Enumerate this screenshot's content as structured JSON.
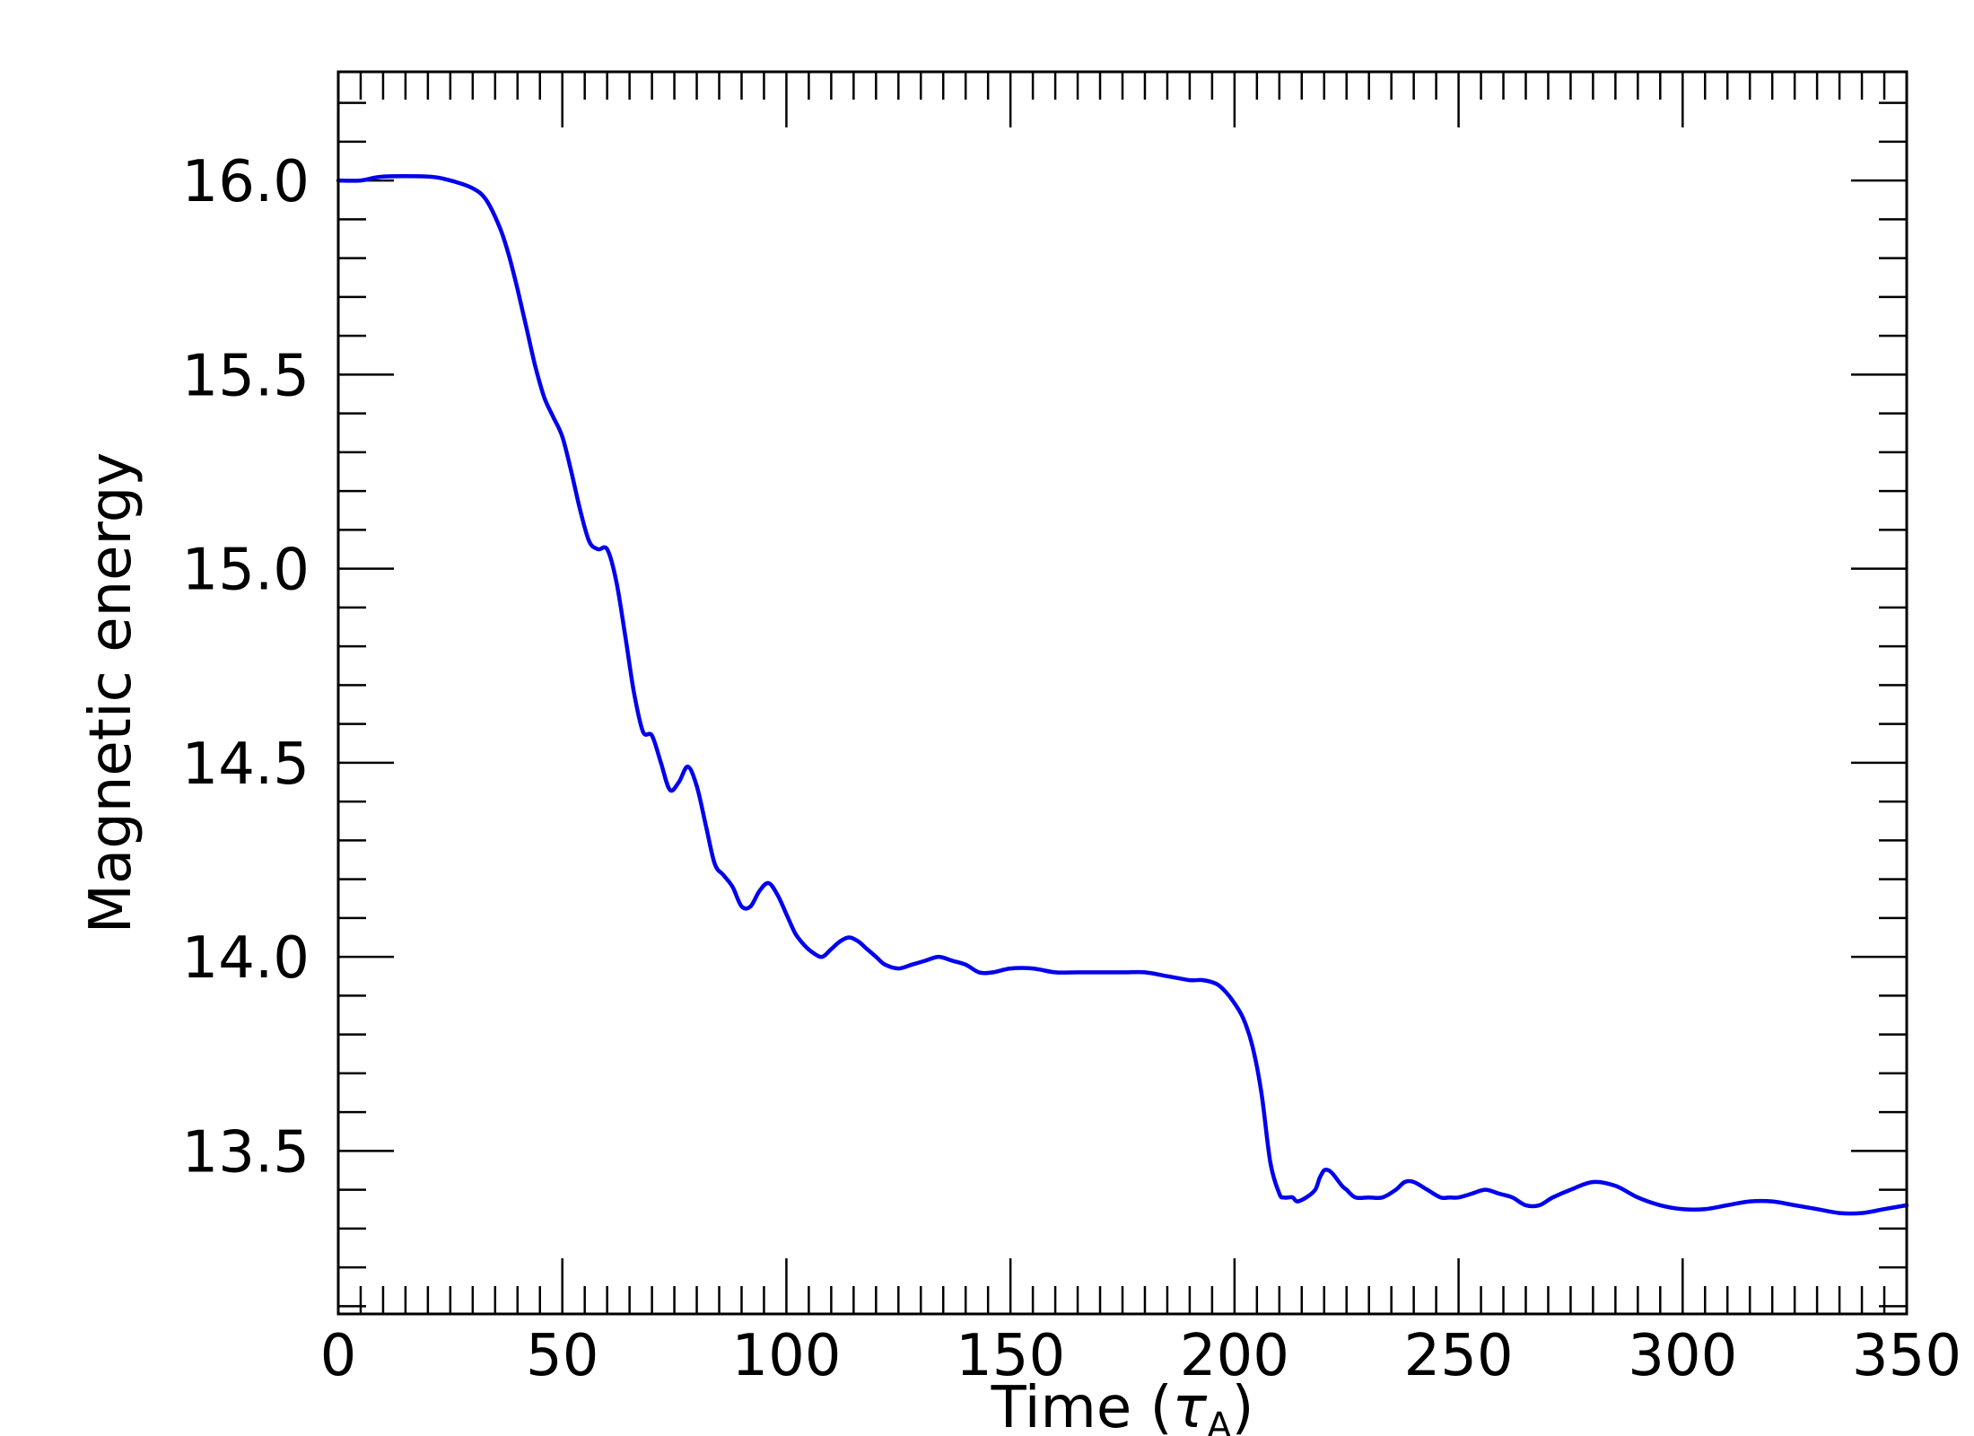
{
  "chart_data": {
    "type": "line",
    "title": "",
    "xlabel": "Time (",
    "xlabel_symbol": "τ",
    "xlabel_subscript": "A",
    "xlabel_close": ")",
    "ylabel": "Magnetic energy",
    "xlim": [
      0,
      350
    ],
    "ylim": [
      13.08,
      16.28
    ],
    "xticks": [
      0,
      50,
      100,
      150,
      200,
      250,
      300,
      350
    ],
    "xtick_labels": [
      "0",
      "50",
      "100",
      "150",
      "200",
      "250",
      "300",
      "350"
    ],
    "yticks": [
      13.5,
      14.0,
      14.5,
      15.0,
      15.5,
      16.0
    ],
    "ytick_labels": [
      "13.5",
      "14.0",
      "14.5",
      "15.0",
      "15.5",
      "16.0"
    ],
    "grid": false,
    "series": [
      {
        "color": "#0000ee",
        "x": [
          0,
          5,
          10,
          20,
          25,
          30,
          33,
          36,
          38,
          40,
          42,
          44,
          46,
          48,
          50,
          52,
          54,
          56,
          58,
          60,
          62,
          64,
          66,
          68,
          70,
          72,
          74,
          76,
          78,
          80,
          82,
          84,
          86,
          88,
          90,
          92,
          94,
          96,
          98,
          100,
          102,
          104,
          106,
          108,
          110,
          112,
          114,
          116,
          118,
          120,
          122,
          125,
          128,
          131,
          134,
          137,
          140,
          143,
          146,
          150,
          155,
          160,
          165,
          170,
          175,
          180,
          185,
          190,
          193,
          196,
          198,
          200,
          202,
          204,
          206,
          208,
          210,
          211,
          212,
          213,
          214,
          216,
          218,
          219,
          220,
          221,
          222,
          224,
          225,
          227,
          230,
          233,
          236,
          238,
          240,
          243,
          246,
          248,
          250,
          253,
          256,
          259,
          262,
          265,
          268,
          271,
          275,
          280,
          285,
          290,
          295,
          300,
          305,
          310,
          315,
          320,
          325,
          330,
          335,
          340,
          345,
          350
        ],
        "values": [
          16.0,
          16.0,
          16.01,
          16.01,
          16.0,
          15.98,
          15.95,
          15.88,
          15.81,
          15.72,
          15.62,
          15.52,
          15.44,
          15.39,
          15.34,
          15.25,
          15.15,
          15.07,
          15.05,
          15.05,
          14.97,
          14.83,
          14.68,
          14.58,
          14.57,
          14.5,
          14.43,
          14.45,
          14.49,
          14.44,
          14.34,
          14.24,
          14.21,
          14.18,
          14.13,
          14.13,
          14.17,
          14.19,
          14.16,
          14.11,
          14.06,
          14.03,
          14.01,
          14.0,
          14.02,
          14.04,
          14.05,
          14.04,
          14.02,
          14.0,
          13.98,
          13.97,
          13.98,
          13.99,
          14.0,
          13.99,
          13.98,
          13.96,
          13.96,
          13.97,
          13.97,
          13.96,
          13.96,
          13.96,
          13.96,
          13.96,
          13.95,
          13.94,
          13.94,
          13.93,
          13.91,
          13.88,
          13.84,
          13.77,
          13.65,
          13.47,
          13.39,
          13.38,
          13.38,
          13.38,
          13.37,
          13.38,
          13.4,
          13.43,
          13.45,
          13.45,
          13.44,
          13.41,
          13.4,
          13.38,
          13.38,
          13.38,
          13.4,
          13.42,
          13.42,
          13.4,
          13.38,
          13.38,
          13.38,
          13.39,
          13.4,
          13.39,
          13.38,
          13.36,
          13.36,
          13.38,
          13.4,
          13.42,
          13.41,
          13.38,
          13.36,
          13.35,
          13.35,
          13.36,
          13.37,
          13.37,
          13.36,
          13.35,
          13.34,
          13.34,
          13.35,
          13.36
        ]
      }
    ]
  }
}
